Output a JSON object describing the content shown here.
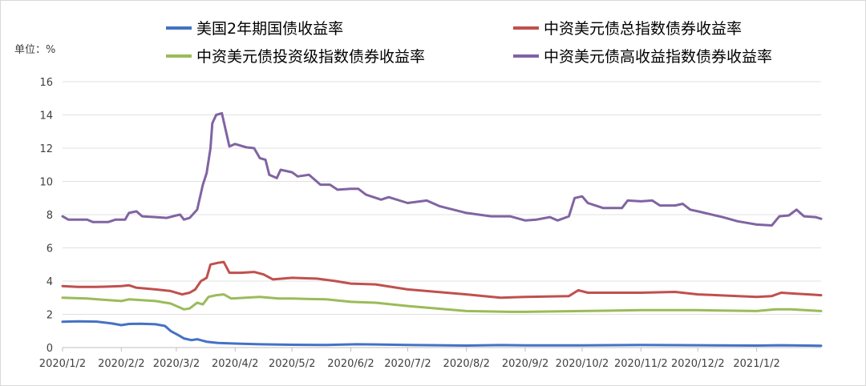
{
  "chart_data": {
    "type": "line",
    "title": "",
    "unit_label": "单位：%",
    "xlabel": "",
    "ylabel": "",
    "ylim": [
      0,
      16
    ],
    "yticks": [
      0,
      2,
      4,
      6,
      8,
      10,
      12,
      14,
      16
    ],
    "xlim": [
      "2020-01-02",
      "2021-02-05"
    ],
    "xticks": [
      {
        "date": "2020-01-02",
        "label": "2020/1/2"
      },
      {
        "date": "2020-02-02",
        "label": "2020/2/2"
      },
      {
        "date": "2020-03-02",
        "label": "2020/3/2"
      },
      {
        "date": "2020-04-02",
        "label": "2020/4/2"
      },
      {
        "date": "2020-05-02",
        "label": "2020/5/2"
      },
      {
        "date": "2020-06-02",
        "label": "2020/6/2"
      },
      {
        "date": "2020-07-02",
        "label": "2020/7/2"
      },
      {
        "date": "2020-08-02",
        "label": "2020/8/2"
      },
      {
        "date": "2020-09-02",
        "label": "2020/9/2"
      },
      {
        "date": "2020-10-02",
        "label": "2020/10/2"
      },
      {
        "date": "2020-11-02",
        "label": "2020/11/2"
      },
      {
        "date": "2020-12-02",
        "label": "2020/12/2"
      },
      {
        "date": "2021-01-02",
        "label": "2021/1/2"
      }
    ],
    "grid": "horizontal",
    "legend_position": "top",
    "series": [
      {
        "name": "美国2年期国债收益率",
        "color": "#4472C4",
        "points": [
          [
            "2020-01-02",
            1.55
          ],
          [
            "2020-01-10",
            1.58
          ],
          [
            "2020-01-20",
            1.56
          ],
          [
            "2020-01-28",
            1.45
          ],
          [
            "2020-02-02",
            1.35
          ],
          [
            "2020-02-06",
            1.42
          ],
          [
            "2020-02-12",
            1.43
          ],
          [
            "2020-02-20",
            1.4
          ],
          [
            "2020-02-25",
            1.3
          ],
          [
            "2020-02-28",
            1.0
          ],
          [
            "2020-03-03",
            0.75
          ],
          [
            "2020-03-06",
            0.55
          ],
          [
            "2020-03-10",
            0.45
          ],
          [
            "2020-03-13",
            0.5
          ],
          [
            "2020-03-18",
            0.35
          ],
          [
            "2020-03-24",
            0.28
          ],
          [
            "2020-04-02",
            0.24
          ],
          [
            "2020-04-15",
            0.2
          ],
          [
            "2020-05-02",
            0.17
          ],
          [
            "2020-05-20",
            0.16
          ],
          [
            "2020-06-05",
            0.2
          ],
          [
            "2020-06-15",
            0.19
          ],
          [
            "2020-07-02",
            0.16
          ],
          [
            "2020-08-02",
            0.12
          ],
          [
            "2020-08-20",
            0.15
          ],
          [
            "2020-09-02",
            0.13
          ],
          [
            "2020-10-02",
            0.13
          ],
          [
            "2020-11-02",
            0.16
          ],
          [
            "2020-12-02",
            0.14
          ],
          [
            "2021-01-02",
            0.12
          ],
          [
            "2021-01-15",
            0.14
          ],
          [
            "2021-02-05",
            0.11
          ]
        ]
      },
      {
        "name": "中资美元债总指数债券收益率",
        "color": "#C0504D",
        "points": [
          [
            "2020-01-02",
            3.7
          ],
          [
            "2020-01-10",
            3.65
          ],
          [
            "2020-01-20",
            3.65
          ],
          [
            "2020-02-02",
            3.7
          ],
          [
            "2020-02-06",
            3.75
          ],
          [
            "2020-02-10",
            3.6
          ],
          [
            "2020-02-20",
            3.5
          ],
          [
            "2020-02-28",
            3.4
          ],
          [
            "2020-03-05",
            3.2
          ],
          [
            "2020-03-09",
            3.3
          ],
          [
            "2020-03-12",
            3.5
          ],
          [
            "2020-03-15",
            4.0
          ],
          [
            "2020-03-18",
            4.2
          ],
          [
            "2020-03-20",
            5.0
          ],
          [
            "2020-03-24",
            5.1
          ],
          [
            "2020-03-27",
            5.15
          ],
          [
            "2020-03-30",
            4.5
          ],
          [
            "2020-04-05",
            4.5
          ],
          [
            "2020-04-12",
            4.55
          ],
          [
            "2020-04-17",
            4.4
          ],
          [
            "2020-04-22",
            4.1
          ],
          [
            "2020-05-02",
            4.2
          ],
          [
            "2020-05-15",
            4.15
          ],
          [
            "2020-05-25",
            4.0
          ],
          [
            "2020-06-02",
            3.85
          ],
          [
            "2020-06-15",
            3.8
          ],
          [
            "2020-07-02",
            3.5
          ],
          [
            "2020-08-02",
            3.2
          ],
          [
            "2020-08-20",
            3.0
          ],
          [
            "2020-09-02",
            3.05
          ],
          [
            "2020-09-25",
            3.1
          ],
          [
            "2020-09-30",
            3.45
          ],
          [
            "2020-10-05",
            3.3
          ],
          [
            "2020-11-02",
            3.3
          ],
          [
            "2020-11-20",
            3.35
          ],
          [
            "2020-12-02",
            3.2
          ],
          [
            "2021-01-02",
            3.05
          ],
          [
            "2021-01-10",
            3.1
          ],
          [
            "2021-01-15",
            3.3
          ],
          [
            "2021-01-22",
            3.25
          ],
          [
            "2021-02-05",
            3.15
          ]
        ]
      },
      {
        "name": "中资美元债投资级指数债券收益率",
        "color": "#9BBB59",
        "points": [
          [
            "2020-01-02",
            3.0
          ],
          [
            "2020-01-15",
            2.95
          ],
          [
            "2020-02-02",
            2.8
          ],
          [
            "2020-02-06",
            2.9
          ],
          [
            "2020-02-20",
            2.8
          ],
          [
            "2020-02-28",
            2.65
          ],
          [
            "2020-03-06",
            2.3
          ],
          [
            "2020-03-09",
            2.35
          ],
          [
            "2020-03-13",
            2.7
          ],
          [
            "2020-03-16",
            2.6
          ],
          [
            "2020-03-19",
            3.05
          ],
          [
            "2020-03-23",
            3.15
          ],
          [
            "2020-03-27",
            3.2
          ],
          [
            "2020-03-31",
            2.95
          ],
          [
            "2020-04-15",
            3.05
          ],
          [
            "2020-04-25",
            2.95
          ],
          [
            "2020-05-02",
            2.95
          ],
          [
            "2020-05-20",
            2.9
          ],
          [
            "2020-06-02",
            2.75
          ],
          [
            "2020-06-15",
            2.7
          ],
          [
            "2020-07-02",
            2.5
          ],
          [
            "2020-08-02",
            2.2
          ],
          [
            "2020-08-25",
            2.15
          ],
          [
            "2020-09-02",
            2.15
          ],
          [
            "2020-10-02",
            2.2
          ],
          [
            "2020-11-02",
            2.25
          ],
          [
            "2020-12-02",
            2.25
          ],
          [
            "2021-01-02",
            2.2
          ],
          [
            "2021-01-12",
            2.3
          ],
          [
            "2021-01-20",
            2.3
          ],
          [
            "2021-02-05",
            2.2
          ]
        ]
      },
      {
        "name": "中资美元债高收益指数债券收益率",
        "color": "#8064A2",
        "points": [
          [
            "2020-01-02",
            7.9
          ],
          [
            "2020-01-05",
            7.7
          ],
          [
            "2020-01-15",
            7.7
          ],
          [
            "2020-01-18",
            7.55
          ],
          [
            "2020-01-26",
            7.55
          ],
          [
            "2020-01-30",
            7.7
          ],
          [
            "2020-02-04",
            7.7
          ],
          [
            "2020-02-06",
            8.1
          ],
          [
            "2020-02-10",
            8.2
          ],
          [
            "2020-02-13",
            7.9
          ],
          [
            "2020-02-20",
            7.85
          ],
          [
            "2020-02-26",
            7.8
          ],
          [
            "2020-03-02",
            7.95
          ],
          [
            "2020-03-04",
            8.0
          ],
          [
            "2020-03-06",
            7.7
          ],
          [
            "2020-03-09",
            7.8
          ],
          [
            "2020-03-13",
            8.3
          ],
          [
            "2020-03-16",
            9.8
          ],
          [
            "2020-03-18",
            10.5
          ],
          [
            "2020-03-20",
            12.0
          ],
          [
            "2020-03-21",
            13.5
          ],
          [
            "2020-03-23",
            14.0
          ],
          [
            "2020-03-26",
            14.1
          ],
          [
            "2020-03-30",
            12.1
          ],
          [
            "2020-04-02",
            12.25
          ],
          [
            "2020-04-08",
            12.05
          ],
          [
            "2020-04-12",
            12.0
          ],
          [
            "2020-04-15",
            11.4
          ],
          [
            "2020-04-18",
            11.3
          ],
          [
            "2020-04-20",
            10.4
          ],
          [
            "2020-04-24",
            10.2
          ],
          [
            "2020-04-26",
            10.7
          ],
          [
            "2020-05-02",
            10.55
          ],
          [
            "2020-05-05",
            10.3
          ],
          [
            "2020-05-11",
            10.4
          ],
          [
            "2020-05-17",
            9.8
          ],
          [
            "2020-05-22",
            9.8
          ],
          [
            "2020-05-26",
            9.5
          ],
          [
            "2020-06-02",
            9.55
          ],
          [
            "2020-06-06",
            9.55
          ],
          [
            "2020-06-10",
            9.2
          ],
          [
            "2020-06-18",
            8.9
          ],
          [
            "2020-06-22",
            9.05
          ],
          [
            "2020-07-02",
            8.7
          ],
          [
            "2020-07-12",
            8.85
          ],
          [
            "2020-07-19",
            8.5
          ],
          [
            "2020-08-02",
            8.1
          ],
          [
            "2020-08-15",
            7.9
          ],
          [
            "2020-08-25",
            7.9
          ],
          [
            "2020-09-02",
            7.65
          ],
          [
            "2020-09-08",
            7.7
          ],
          [
            "2020-09-15",
            7.85
          ],
          [
            "2020-09-19",
            7.65
          ],
          [
            "2020-09-25",
            7.9
          ],
          [
            "2020-09-28",
            9.0
          ],
          [
            "2020-10-02",
            9.1
          ],
          [
            "2020-10-05",
            8.7
          ],
          [
            "2020-10-13",
            8.4
          ],
          [
            "2020-10-23",
            8.4
          ],
          [
            "2020-10-26",
            8.85
          ],
          [
            "2020-11-02",
            8.8
          ],
          [
            "2020-11-08",
            8.85
          ],
          [
            "2020-11-12",
            8.55
          ],
          [
            "2020-11-20",
            8.55
          ],
          [
            "2020-11-24",
            8.65
          ],
          [
            "2020-11-28",
            8.3
          ],
          [
            "2020-12-02",
            8.2
          ],
          [
            "2020-12-15",
            7.85
          ],
          [
            "2020-12-23",
            7.6
          ],
          [
            "2021-01-02",
            7.4
          ],
          [
            "2021-01-10",
            7.35
          ],
          [
            "2021-01-14",
            7.9
          ],
          [
            "2021-01-19",
            7.95
          ],
          [
            "2021-01-23",
            8.3
          ],
          [
            "2021-01-27",
            7.9
          ],
          [
            "2021-02-02",
            7.85
          ],
          [
            "2021-02-05",
            7.75
          ]
        ]
      }
    ]
  }
}
